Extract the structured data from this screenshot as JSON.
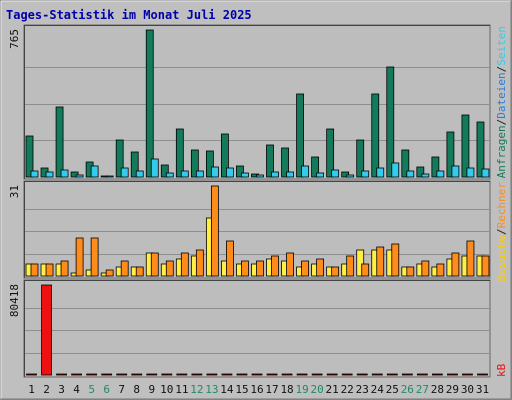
{
  "chart_data": {
    "type": "bar",
    "title": "Tages-Statistik im Monat Juli 2025",
    "categories": [
      "1",
      "2",
      "3",
      "4",
      "5",
      "6",
      "7",
      "8",
      "9",
      "10",
      "11",
      "12",
      "13",
      "14",
      "15",
      "16",
      "17",
      "18",
      "19",
      "20",
      "21",
      "22",
      "23",
      "24",
      "25",
      "26",
      "27",
      "28",
      "29",
      "30",
      "31"
    ],
    "weekend_days": [
      "5",
      "6",
      "12",
      "13",
      "19",
      "20",
      "26",
      "27"
    ],
    "panels": [
      {
        "id": "top",
        "ymax_label": "765",
        "ylim": [
          0,
          765
        ],
        "grid": true,
        "series": [
          {
            "name": "Anfragen",
            "color": "#137a5c",
            "values": [
              215,
              45,
              362,
              25,
              78,
              5,
              192,
              128,
              765,
              65,
              248,
              140,
              135,
              225,
              55,
              18,
              165,
              150,
              430,
              105,
              252,
              25,
              195,
              430,
              575,
              140,
              50,
              105,
              235,
              325,
              285
            ]
          },
          {
            "name": "Dateien",
            "color": "#33ccee",
            "values": [
              30,
              25,
              38,
              10,
              55,
              3,
              45,
              30,
              95,
              20,
              30,
              30,
              50,
              45,
              20,
              12,
              28,
              25,
              58,
              20,
              35,
              10,
              30,
              45,
              75,
              30,
              15,
              30,
              55,
              45,
              40
            ]
          }
        ]
      },
      {
        "id": "middle",
        "ymax_label": "31",
        "ylim": [
          0,
          31
        ],
        "grid": true,
        "series": [
          {
            "name": "Seiten",
            "color": "#ffee44",
            "values": [
              4,
              4,
              4,
              1,
              2,
              1,
              3,
              3,
              8,
              4,
              6,
              7,
              20,
              5,
              4,
              4,
              6,
              5,
              3,
              4,
              3,
              4,
              9,
              9,
              9,
              3,
              4,
              3,
              6,
              7,
              7
            ]
          },
          {
            "name": "Besuche",
            "color": "#ff8c1a",
            "values": [
              4,
              4,
              5,
              13,
              13,
              2,
              5,
              3,
              8,
              5,
              8,
              9,
              31,
              12,
              5,
              5,
              7,
              8,
              5,
              6,
              3,
              7,
              4,
              10,
              11,
              3,
              5,
              4,
              8,
              12,
              7
            ]
          }
        ]
      },
      {
        "id": "bottom",
        "ymax_label": "80418",
        "ylim": [
          0,
          80418
        ],
        "grid": true,
        "series": [
          {
            "name": "kB",
            "color": "#ee1111",
            "values": [
              0,
              80418,
              0,
              0,
              0,
              0,
              0,
              0,
              0,
              0,
              0,
              0,
              0,
              0,
              0,
              0,
              0,
              0,
              0,
              0,
              0,
              0,
              0,
              0,
              0,
              0,
              0,
              0,
              0,
              0,
              0
            ]
          }
        ]
      }
    ],
    "legend": {
      "top": [
        {
          "text": "Anfragen",
          "color": "#137a5c"
        },
        {
          "text": "/",
          "color": "#222222"
        },
        {
          "text": "Dateien",
          "color": "#2a7cd6"
        },
        {
          "text": "/",
          "color": "#222222"
        },
        {
          "text": "Seiten",
          "color": "#33ccee"
        }
      ],
      "middle": [
        {
          "text": "Besuche",
          "color": "#ffcc00"
        },
        {
          "text": "/",
          "color": "#222222"
        },
        {
          "text": "Rechner",
          "color": "#ff8c1a"
        }
      ],
      "bottom": [
        {
          "text": "kB",
          "color": "#ee1111"
        }
      ]
    }
  }
}
